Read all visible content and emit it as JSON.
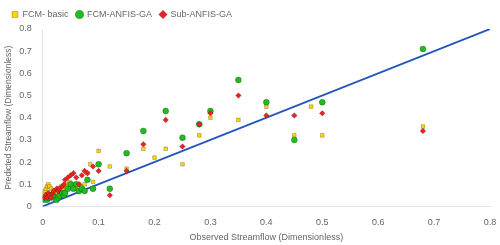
{
  "chart_data": {
    "type": "scatter",
    "xlabel": "Observed Streamflow (Dimensionless)",
    "ylabel": "Predicted Streamflow (Dimensionless)",
    "xlim": [
      0,
      0.8
    ],
    "ylim": [
      0,
      0.8
    ],
    "xticks": [
      0,
      0.1,
      0.2,
      0.3,
      0.4,
      0.5,
      0.6,
      0.7,
      0.8
    ],
    "yticks": [
      0,
      0.1,
      0.2,
      0.3,
      0.4,
      0.5,
      0.6,
      0.7,
      0.8
    ],
    "grid": false,
    "legend": "upper left",
    "series": [
      {
        "type": "line",
        "color": "#2255BB",
        "x": [
          0,
          0.8
        ],
        "values": [
          0,
          0.8
        ]
      },
      {
        "name": "FCM- basic",
        "color": "#FFD700",
        "marker": "square",
        "x": [
          0.002,
          0.004,
          0.006,
          0.008,
          0.01,
          0.012,
          0.015,
          0.018,
          0.02,
          0.022,
          0.025,
          0.028,
          0.03,
          0.033,
          0.036,
          0.04,
          0.044,
          0.048,
          0.052,
          0.056,
          0.06,
          0.065,
          0.07,
          0.075,
          0.08,
          0.085,
          0.09,
          0.1,
          0.12,
          0.15,
          0.18,
          0.2,
          0.22,
          0.25,
          0.28,
          0.3,
          0.35,
          0.4,
          0.45,
          0.48,
          0.5,
          0.68
        ],
        "values": [
          0.06,
          0.07,
          0.08,
          0.09,
          0.1,
          0.09,
          0.08,
          0.07,
          0.06,
          0.07,
          0.06,
          0.07,
          0.08,
          0.09,
          0.08,
          0.09,
          0.1,
          0.11,
          0.1,
          0.08,
          0.08,
          0.1,
          0.09,
          0.1,
          0.15,
          0.19,
          0.11,
          0.25,
          0.18,
          0.17,
          0.26,
          0.22,
          0.26,
          0.19,
          0.32,
          0.4,
          0.39,
          0.45,
          0.32,
          0.45,
          0.32,
          0.36
        ]
      },
      {
        "name": "FCM-ANFIS-GA",
        "color": "#22BB22",
        "marker": "circle",
        "x": [
          0.002,
          0.005,
          0.008,
          0.01,
          0.012,
          0.015,
          0.018,
          0.02,
          0.025,
          0.028,
          0.03,
          0.035,
          0.038,
          0.04,
          0.045,
          0.05,
          0.055,
          0.06,
          0.065,
          0.07,
          0.075,
          0.08,
          0.09,
          0.1,
          0.12,
          0.15,
          0.18,
          0.22,
          0.25,
          0.28,
          0.3,
          0.35,
          0.4,
          0.45,
          0.5,
          0.68
        ],
        "values": [
          0.03,
          0.04,
          0.03,
          0.04,
          0.05,
          0.04,
          0.05,
          0.04,
          0.03,
          0.04,
          0.05,
          0.06,
          0.05,
          0.06,
          0.08,
          0.1,
          0.08,
          0.1,
          0.07,
          0.08,
          0.07,
          0.12,
          0.08,
          0.19,
          0.08,
          0.24,
          0.34,
          0.43,
          0.31,
          0.37,
          0.43,
          0.57,
          0.47,
          0.3,
          0.47,
          0.71
        ]
      },
      {
        "name": "Sub-ANFIS-GA",
        "color": "#EE2222",
        "marker": "diamond",
        "x": [
          0.002,
          0.005,
          0.008,
          0.01,
          0.012,
          0.015,
          0.018,
          0.02,
          0.025,
          0.028,
          0.03,
          0.035,
          0.038,
          0.04,
          0.045,
          0.05,
          0.055,
          0.06,
          0.065,
          0.07,
          0.075,
          0.08,
          0.09,
          0.1,
          0.12,
          0.15,
          0.18,
          0.22,
          0.25,
          0.28,
          0.3,
          0.35,
          0.4,
          0.45,
          0.5,
          0.68
        ],
        "values": [
          0.04,
          0.05,
          0.04,
          0.06,
          0.05,
          0.04,
          0.06,
          0.07,
          0.08,
          0.07,
          0.08,
          0.09,
          0.1,
          0.12,
          0.13,
          0.14,
          0.15,
          0.13,
          0.1,
          0.14,
          0.16,
          0.15,
          0.18,
          0.16,
          0.05,
          0.16,
          0.28,
          0.39,
          0.27,
          0.37,
          0.42,
          0.5,
          0.41,
          0.41,
          0.42,
          0.34
        ]
      }
    ]
  }
}
